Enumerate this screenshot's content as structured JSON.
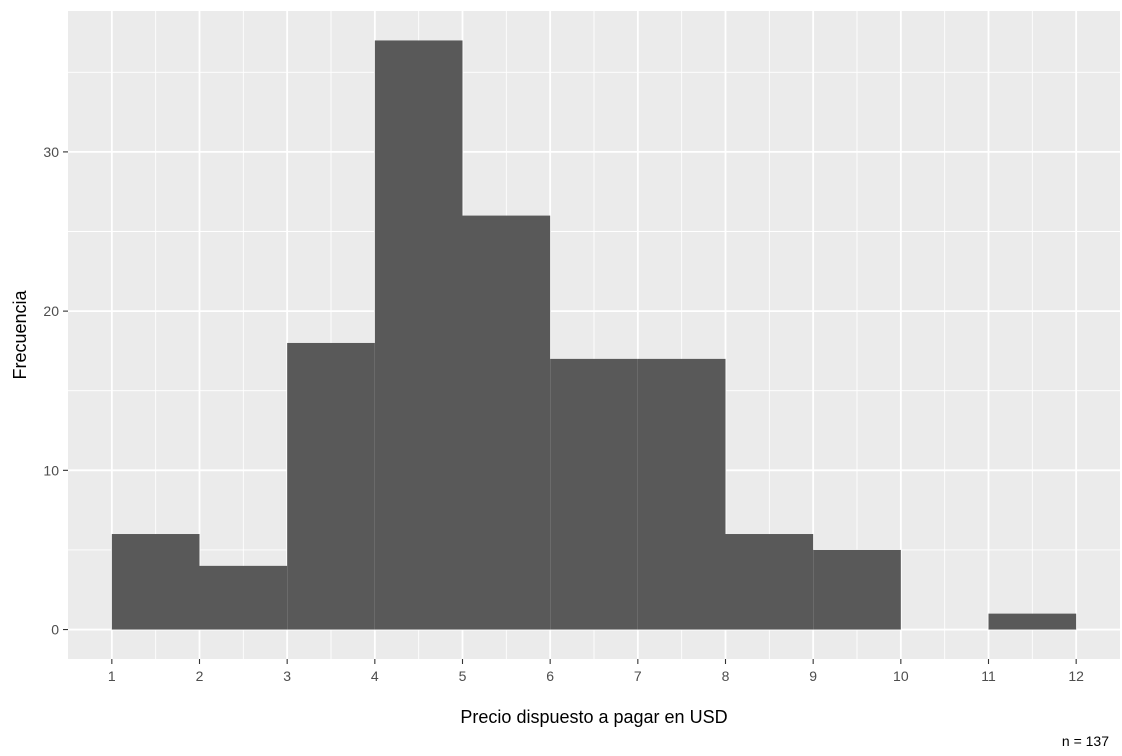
{
  "chart_data": {
    "type": "bar",
    "subtype": "histogram",
    "bins": [
      {
        "x0": 1,
        "x1": 2,
        "count": 6
      },
      {
        "x0": 2,
        "x1": 3,
        "count": 4
      },
      {
        "x0": 3,
        "x1": 4,
        "count": 18
      },
      {
        "x0": 4,
        "x1": 5,
        "count": 37
      },
      {
        "x0": 5,
        "x1": 6,
        "count": 26
      },
      {
        "x0": 6,
        "x1": 7,
        "count": 17
      },
      {
        "x0": 7,
        "x1": 8,
        "count": 17
      },
      {
        "x0": 8,
        "x1": 9,
        "count": 6
      },
      {
        "x0": 9,
        "x1": 10,
        "count": 5
      },
      {
        "x0": 10,
        "x1": 11,
        "count": 0
      },
      {
        "x0": 11,
        "x1": 12,
        "count": 1
      }
    ],
    "title": "",
    "xlabel": "Precio dispuesto a pagar en USD",
    "ylabel": "Frecuencia",
    "xlim": [
      0.5,
      12.5
    ],
    "ylim": [
      -1.85,
      38.85
    ],
    "xticks": [
      "1",
      "2",
      "3",
      "4",
      "5",
      "6",
      "7",
      "8",
      "9",
      "10",
      "11",
      "12"
    ],
    "yticks": [
      "0",
      "10",
      "20",
      "30"
    ],
    "caption": "n = 137",
    "grid": true,
    "legend": "none",
    "bar_color": "#595959",
    "panel_color": "#ebebeb",
    "gridline_color": "#ffffff"
  }
}
